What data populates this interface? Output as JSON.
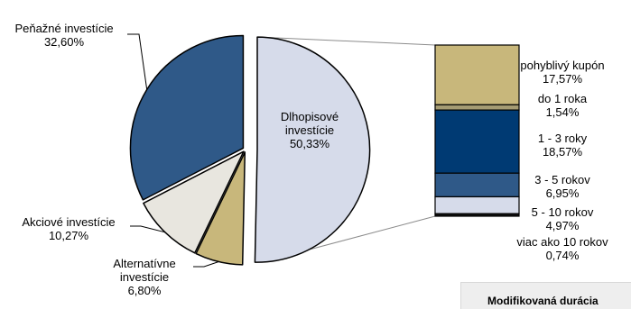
{
  "chart_data": {
    "type": "pie",
    "slices": [
      {
        "label_lines": [
          "Dlhopisové",
          "investície",
          "50,33%"
        ],
        "value": 50.33,
        "color": "#d6dbea",
        "exploded": true
      },
      {
        "label_lines": [
          "Alternatívne",
          "investície",
          "6,80%"
        ],
        "value": 6.8,
        "color": "#c8b77b"
      },
      {
        "label_lines": [
          "Akciové investície",
          "10,27%"
        ],
        "value": 10.27,
        "color": "#e8e6df"
      },
      {
        "label_lines": [
          "Peňažné investície",
          "32,60%"
        ],
        "value": 32.6,
        "color": "#2f5988"
      }
    ],
    "breakdown": {
      "type": "stacked-bar",
      "of": "Dlhopisové investície",
      "segments": [
        {
          "label_lines": [
            "pohyblivý kupón",
            "17,57%"
          ],
          "value": 17.57,
          "color": "#c8b77b"
        },
        {
          "label_lines": [
            "do 1 roka",
            "1,54%"
          ],
          "value": 1.54,
          "color": "#a59b73"
        },
        {
          "label_lines": [
            "1 - 3 roky",
            "18,57%"
          ],
          "value": 18.57,
          "color": "#003a73"
        },
        {
          "label_lines": [
            "3 - 5 rokov",
            "6,95%"
          ],
          "value": 6.95,
          "color": "#2f5988"
        },
        {
          "label_lines": [
            "5 - 10 rokov",
            "4,97%"
          ],
          "value": 4.97,
          "color": "#d6dbea"
        },
        {
          "label_lines": [
            "viac ako 10 rokov",
            "0,74%"
          ],
          "value": 0.74,
          "color": "#111111"
        }
      ]
    }
  },
  "footer_box": {
    "title": "Modifikovaná durácia"
  }
}
